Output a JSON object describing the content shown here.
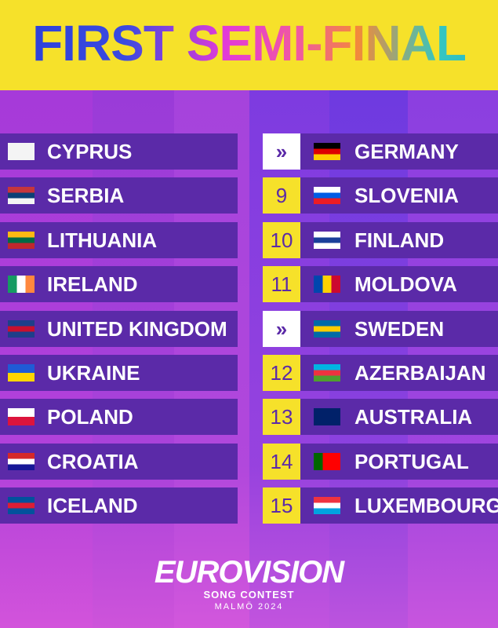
{
  "header": {
    "title": "FIRST SEMI-FINAL"
  },
  "left": [
    "CYPRUS",
    "SERBIA",
    "LITHUANIA",
    "IRELAND",
    "UNITED KINGDOM",
    "UKRAINE",
    "POLAND",
    "CROATIA",
    "ICELAND"
  ],
  "right": [
    {
      "badge": "»",
      "country": "GERMANY"
    },
    {
      "badge": "9",
      "country": "SLOVENIA"
    },
    {
      "badge": "10",
      "country": "FINLAND"
    },
    {
      "badge": "11",
      "country": "MOLDOVA"
    },
    {
      "badge": "»",
      "country": "SWEDEN"
    },
    {
      "badge": "12",
      "country": "AZERBAIJAN"
    },
    {
      "badge": "13",
      "country": "AUSTRALIA"
    },
    {
      "badge": "14",
      "country": "PORTUGAL"
    },
    {
      "badge": "15",
      "country": "LUXEMBOURG"
    }
  ],
  "logo": {
    "name": "EUROVISION",
    "subtitle": "SONG CONTEST",
    "place": "MALMÖ 2024"
  }
}
